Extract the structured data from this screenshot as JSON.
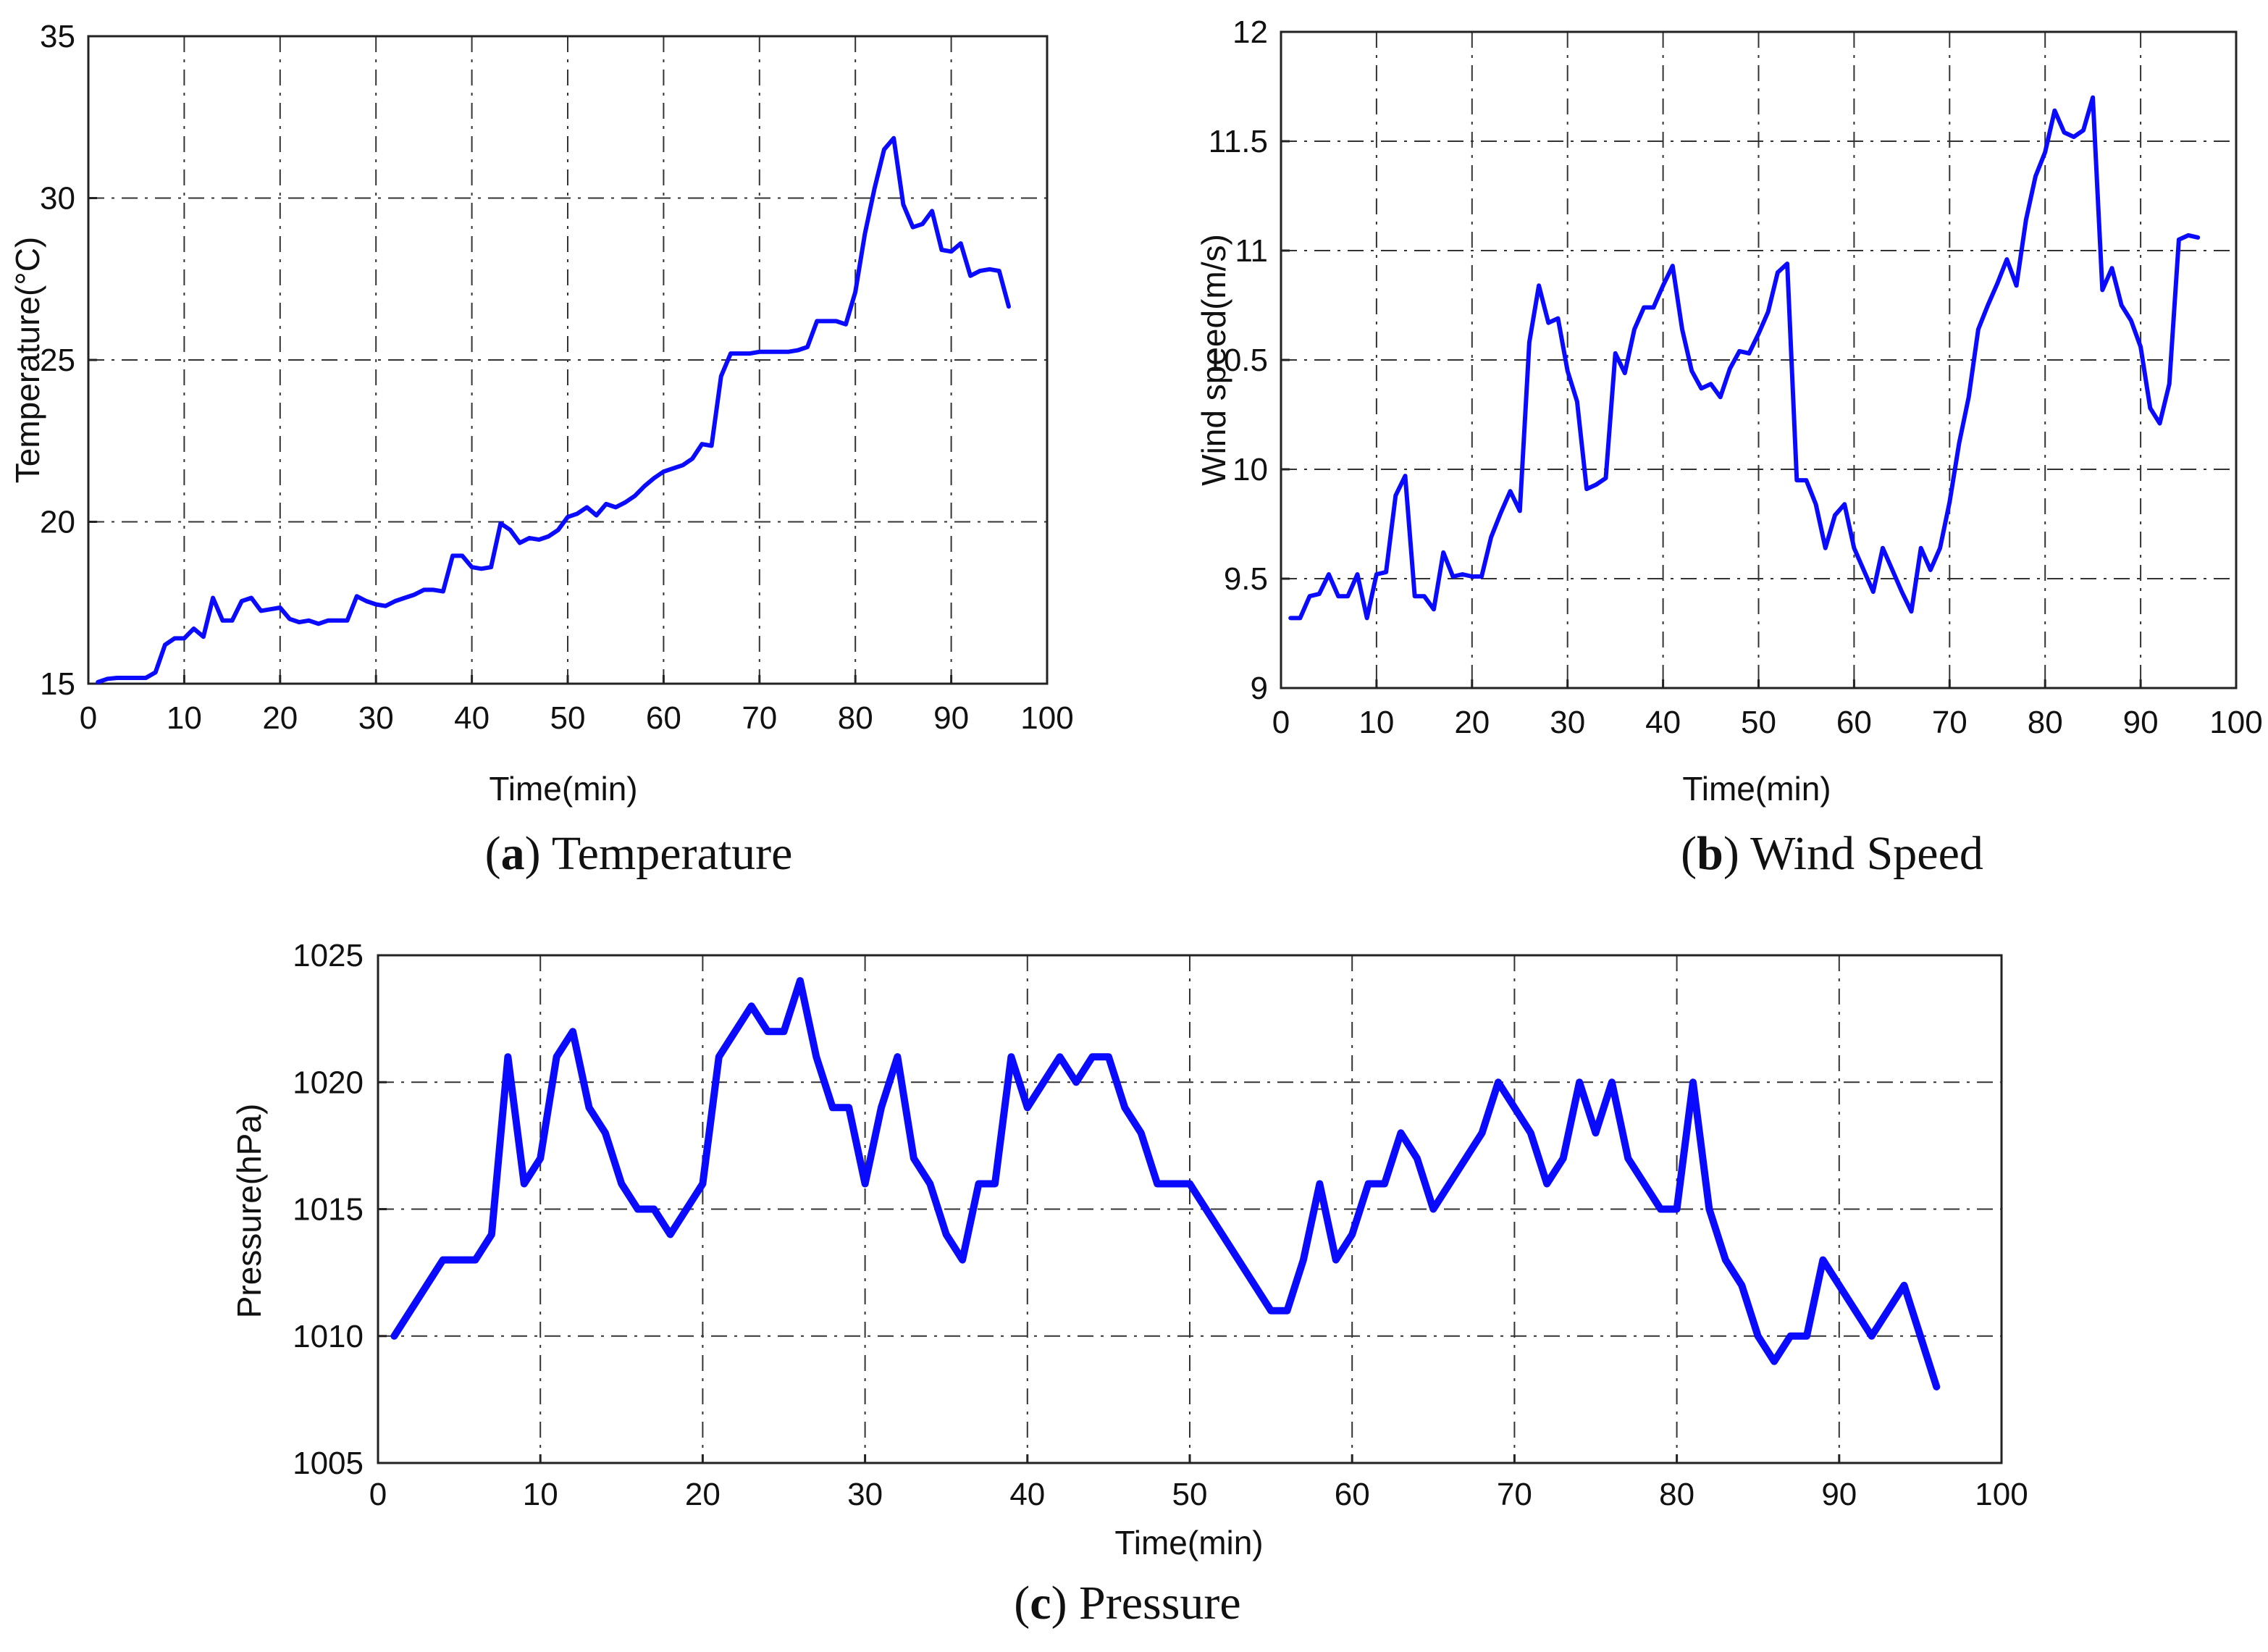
{
  "series_color": "#0a0aff",
  "chart_data": [
    {
      "id": "temperature",
      "type": "line",
      "caption_letter": "a",
      "caption_text": "Temperature",
      "xlabel": "Time(min)",
      "ylabel": "Temperature(°C)",
      "xlim": [
        0,
        100
      ],
      "ylim": [
        15,
        35
      ],
      "xticks": [
        0,
        10,
        20,
        30,
        40,
        50,
        60,
        70,
        80,
        90,
        100
      ],
      "yticks": [
        15,
        20,
        25,
        30,
        35
      ],
      "grid": true,
      "series": [
        {
          "name": "Temperature",
          "x": [
            1,
            2,
            3,
            4,
            5,
            6,
            7,
            8,
            9,
            10,
            11,
            12,
            13,
            14,
            15,
            16,
            17,
            18,
            19,
            20,
            21,
            22,
            23,
            24,
            25,
            26,
            27,
            28,
            29,
            30,
            31,
            32,
            33,
            34,
            35,
            36,
            37,
            38,
            39,
            40,
            41,
            42,
            43,
            44,
            45,
            46,
            47,
            48,
            49,
            50,
            51,
            52,
            53,
            54,
            55,
            56,
            57,
            58,
            59,
            60,
            61,
            62,
            63,
            64,
            65,
            66,
            67,
            68,
            69,
            70,
            71,
            72,
            73,
            74,
            75,
            76,
            77,
            78,
            79,
            80,
            81,
            82,
            83,
            84,
            85,
            86,
            87,
            88,
            89,
            90,
            91,
            92,
            93,
            94,
            95,
            96
          ],
          "values": [
            15.05,
            15.15,
            15.18,
            15.18,
            15.18,
            15.18,
            15.35,
            16.2,
            16.4,
            16.4,
            16.7,
            16.45,
            17.65,
            16.95,
            16.95,
            17.55,
            17.65,
            17.25,
            17.3,
            17.35,
            17.0,
            16.9,
            16.95,
            16.85,
            16.95,
            16.95,
            16.95,
            17.7,
            17.55,
            17.45,
            17.4,
            17.55,
            17.65,
            17.75,
            17.9,
            17.9,
            17.85,
            18.95,
            18.95,
            18.6,
            18.55,
            18.6,
            19.95,
            19.75,
            19.35,
            19.5,
            19.45,
            19.55,
            19.75,
            20.15,
            20.25,
            20.45,
            20.2,
            20.55,
            20.45,
            20.6,
            20.8,
            21.1,
            21.35,
            21.55,
            21.65,
            21.75,
            21.95,
            22.4,
            22.35,
            24.5,
            25.2,
            25.2,
            25.2,
            25.25,
            25.25,
            25.25,
            25.25,
            25.3,
            25.4,
            26.2,
            26.2,
            26.2,
            26.1,
            27.1,
            28.9,
            30.3,
            31.5,
            31.85,
            29.8,
            29.1,
            29.2,
            29.6,
            28.4,
            28.35,
            28.6,
            27.6,
            27.75,
            27.8,
            27.75,
            26.65
          ]
        }
      ]
    },
    {
      "id": "wind_speed",
      "type": "line",
      "caption_letter": "b",
      "caption_text": "Wind Speed",
      "xlabel": "Time(min)",
      "ylabel": "Wind speed(m/s)",
      "xlim": [
        0,
        100
      ],
      "ylim": [
        9,
        12
      ],
      "xticks": [
        0,
        10,
        20,
        30,
        40,
        50,
        60,
        70,
        80,
        90,
        100
      ],
      "yticks": [
        9,
        9.5,
        10,
        10.5,
        11,
        11.5,
        12
      ],
      "grid": true,
      "series": [
        {
          "name": "Wind speed",
          "x": [
            1,
            2,
            3,
            4,
            5,
            6,
            7,
            8,
            9,
            10,
            11,
            12,
            13,
            14,
            15,
            16,
            17,
            18,
            19,
            20,
            21,
            22,
            23,
            24,
            25,
            26,
            27,
            28,
            29,
            30,
            31,
            32,
            33,
            34,
            35,
            36,
            37,
            38,
            39,
            40,
            41,
            42,
            43,
            44,
            45,
            46,
            47,
            48,
            49,
            50,
            51,
            52,
            53,
            54,
            55,
            56,
            57,
            58,
            59,
            60,
            61,
            62,
            63,
            64,
            65,
            66,
            67,
            68,
            69,
            70,
            71,
            72,
            73,
            74,
            75,
            76,
            77,
            78,
            79,
            80,
            81,
            82,
            83,
            84,
            85,
            86,
            87,
            88,
            89,
            90,
            91,
            92,
            93,
            94,
            95,
            96
          ],
          "values": [
            9.32,
            9.32,
            9.42,
            9.43,
            9.52,
            9.42,
            9.42,
            9.52,
            9.32,
            9.52,
            9.53,
            9.88,
            9.97,
            9.42,
            9.42,
            9.36,
            9.62,
            9.51,
            9.52,
            9.51,
            9.51,
            9.69,
            9.8,
            9.9,
            9.81,
            10.58,
            10.84,
            10.67,
            10.69,
            10.45,
            10.31,
            9.91,
            9.93,
            9.96,
            10.53,
            10.44,
            10.64,
            10.74,
            10.74,
            10.84,
            10.93,
            10.64,
            10.45,
            10.37,
            10.39,
            10.33,
            10.46,
            10.54,
            10.53,
            10.62,
            10.72,
            10.9,
            10.94,
            9.95,
            9.95,
            9.84,
            9.64,
            9.79,
            9.84,
            9.64,
            9.54,
            9.44,
            9.64,
            9.54,
            9.44,
            9.35,
            9.64,
            9.54,
            9.64,
            9.85,
            10.12,
            10.33,
            10.64,
            10.75,
            10.85,
            10.96,
            10.84,
            11.14,
            11.34,
            11.45,
            11.64,
            11.54,
            11.52,
            11.55,
            11.7,
            10.82,
            10.92,
            10.75,
            10.68,
            10.56,
            10.28,
            10.21,
            10.39,
            11.05,
            11.07,
            11.06
          ]
        }
      ]
    },
    {
      "id": "pressure",
      "type": "line",
      "caption_letter": "c",
      "caption_text": "Pressure",
      "xlabel": "Time(min)",
      "ylabel": "Pressure(hPa)",
      "xlim": [
        0,
        100
      ],
      "ylim": [
        1005,
        1025
      ],
      "xticks": [
        0,
        10,
        20,
        30,
        40,
        50,
        60,
        70,
        80,
        90,
        100
      ],
      "yticks": [
        1005,
        1010,
        1015,
        1020,
        1025
      ],
      "grid": true,
      "series": [
        {
          "name": "Pressure",
          "x": [
            1,
            4,
            5,
            6,
            7,
            8,
            9,
            10,
            11,
            12,
            13,
            14,
            15,
            16,
            17,
            18,
            20,
            21,
            23,
            24,
            25,
            26,
            27,
            28,
            29,
            30,
            31,
            32,
            33,
            34,
            35,
            36,
            37,
            38,
            39,
            40,
            42,
            43,
            44,
            45,
            46,
            47,
            48,
            50,
            55,
            56,
            57,
            58,
            59,
            60,
            61,
            62,
            63,
            64,
            65,
            68,
            69,
            71,
            72,
            73,
            74,
            75,
            76,
            77,
            79,
            80,
            81,
            82,
            83,
            84,
            85,
            86,
            87,
            88,
            89,
            92,
            94,
            96
          ],
          "values": [
            1010,
            1013,
            1013,
            1013,
            1014,
            1021,
            1016,
            1017,
            1021,
            1022,
            1019,
            1018,
            1016,
            1015,
            1015,
            1014,
            1016,
            1021,
            1023,
            1022,
            1022,
            1024,
            1021,
            1019,
            1019,
            1016,
            1019,
            1021,
            1017,
            1016,
            1014,
            1013,
            1016,
            1016,
            1021,
            1019,
            1021,
            1020,
            1021,
            1021,
            1019,
            1018,
            1016,
            1016,
            1011,
            1011,
            1013,
            1016,
            1013,
            1014,
            1016,
            1016,
            1018,
            1017,
            1015,
            1018,
            1020,
            1018,
            1016,
            1017,
            1020,
            1018,
            1020,
            1017,
            1015,
            1015,
            1020,
            1015,
            1013,
            1012,
            1010,
            1009,
            1010,
            1010,
            1013,
            1010,
            1012,
            1008
          ]
        }
      ]
    }
  ]
}
